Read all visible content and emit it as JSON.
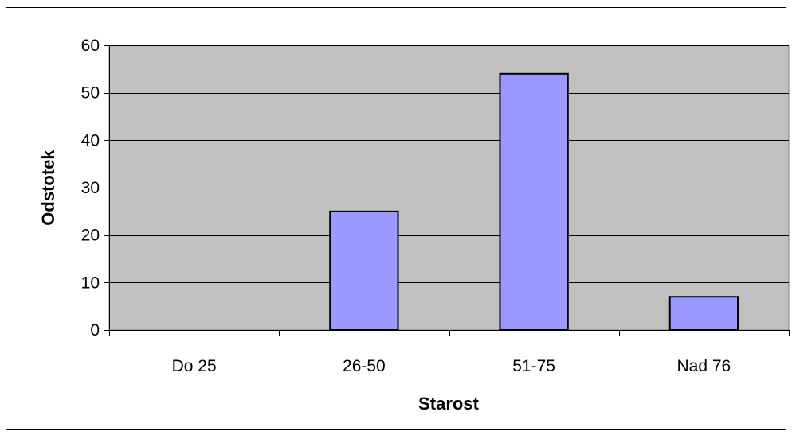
{
  "chart_data": {
    "type": "bar",
    "categories": [
      "Do 25",
      "26-50",
      "51-75",
      "Nad 76"
    ],
    "values": [
      0,
      25,
      54,
      7
    ],
    "title": "",
    "xlabel": "Starost",
    "ylabel": "Odstotek",
    "ylim": [
      0,
      60
    ],
    "yticks": [
      0,
      10,
      20,
      30,
      40,
      50,
      60
    ],
    "grid": true,
    "legend": "none",
    "colors": {
      "plot_background": "#c0c0c0",
      "bar_fill": "#9999ff",
      "bar_stroke": "#000000",
      "gridline": "#000000",
      "frame": "#000000"
    }
  }
}
